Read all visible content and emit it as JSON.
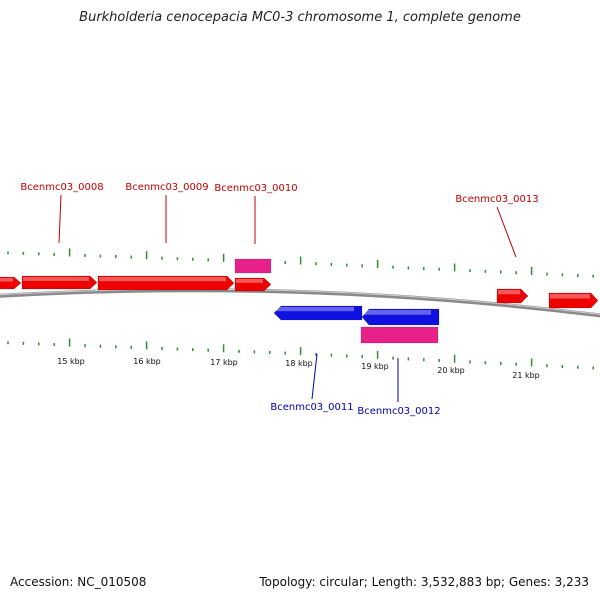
{
  "title": "Burkholderia cenocepacia MC0-3 chromosome 1, complete genome",
  "footer": {
    "accession": "Accession: NC_010508",
    "summary": "Topology: circular; Length: 3,532,883 bp; Genes: 3,233"
  },
  "colors": {
    "forward_cds": "#ee0000",
    "reverse_cds": "#1010e0",
    "rna": "#e8208a",
    "backbone": "#8a8a8a",
    "ticks": "#2f8f2f",
    "label_forward": "#c00000",
    "label_reverse": "#0000b0"
  },
  "scale_labels": [
    "15 kbp",
    "16 kbp",
    "17 kbp",
    "18 kbp",
    "19 kbp",
    "20 kbp",
    "21 kbp"
  ],
  "genes": [
    {
      "id": "Bcenmc03_0008",
      "label": "Bcenmc03_0008"
    },
    {
      "id": "Bcenmc03_0009",
      "label": "Bcenmc03_0009"
    },
    {
      "id": "Bcenmc03_0010",
      "label": "Bcenmc03_0010"
    },
    {
      "id": "Bcenmc03_0011",
      "label": "Bcenmc03_0011"
    },
    {
      "id": "Bcenmc03_0012",
      "label": "Bcenmc03_0012"
    },
    {
      "id": "Bcenmc03_0013",
      "label": "Bcenmc03_0013"
    }
  ]
}
